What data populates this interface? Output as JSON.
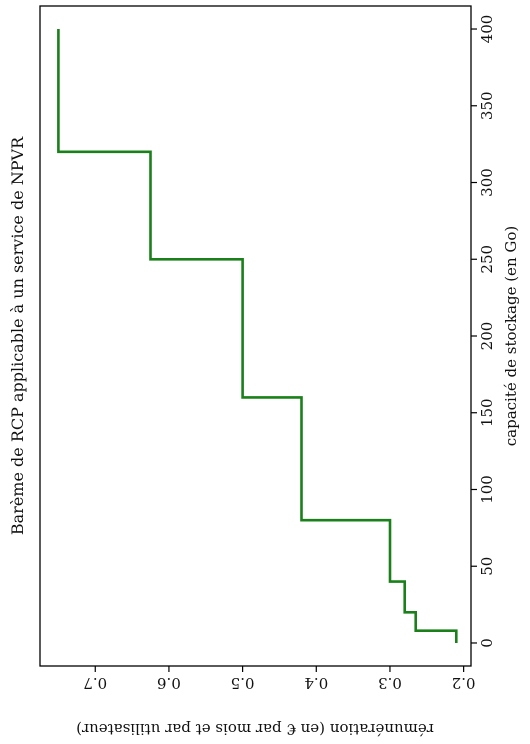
{
  "chart_data": {
    "type": "line",
    "orientation": "rotated-90-clockwise",
    "step": true,
    "title": "Barème de RCP applicable à un service de NPVR",
    "xlabel": "capacité de stockage (en Go)",
    "ylabel": "rémunération (en € par mois et par utilisateur)",
    "xlim": [
      -15,
      415
    ],
    "ylim": [
      0.19,
      0.775
    ],
    "x_ticks": [
      0,
      50,
      100,
      150,
      200,
      250,
      300,
      350,
      400
    ],
    "x_tick_labels": [
      "0",
      "50",
      "100",
      "150",
      "200",
      "250",
      "300",
      "350",
      "400"
    ],
    "y_ticks": [
      0.2,
      0.3,
      0.4,
      0.5,
      0.6,
      0.7
    ],
    "y_tick_labels": [
      "0.2",
      "0.3",
      "0.4",
      "0.5",
      "0.6",
      "0.7"
    ],
    "grid": false,
    "series": [
      {
        "color": "#1a801a",
        "x": [
          0,
          8,
          8,
          20,
          20,
          40,
          40,
          80,
          80,
          160,
          160,
          250,
          250,
          320,
          320,
          400
        ],
        "y": [
          0.21,
          0.21,
          0.265,
          0.265,
          0.28,
          0.28,
          0.3,
          0.3,
          0.42,
          0.42,
          0.5,
          0.5,
          0.625,
          0.625,
          0.75,
          0.75
        ]
      }
    ]
  }
}
